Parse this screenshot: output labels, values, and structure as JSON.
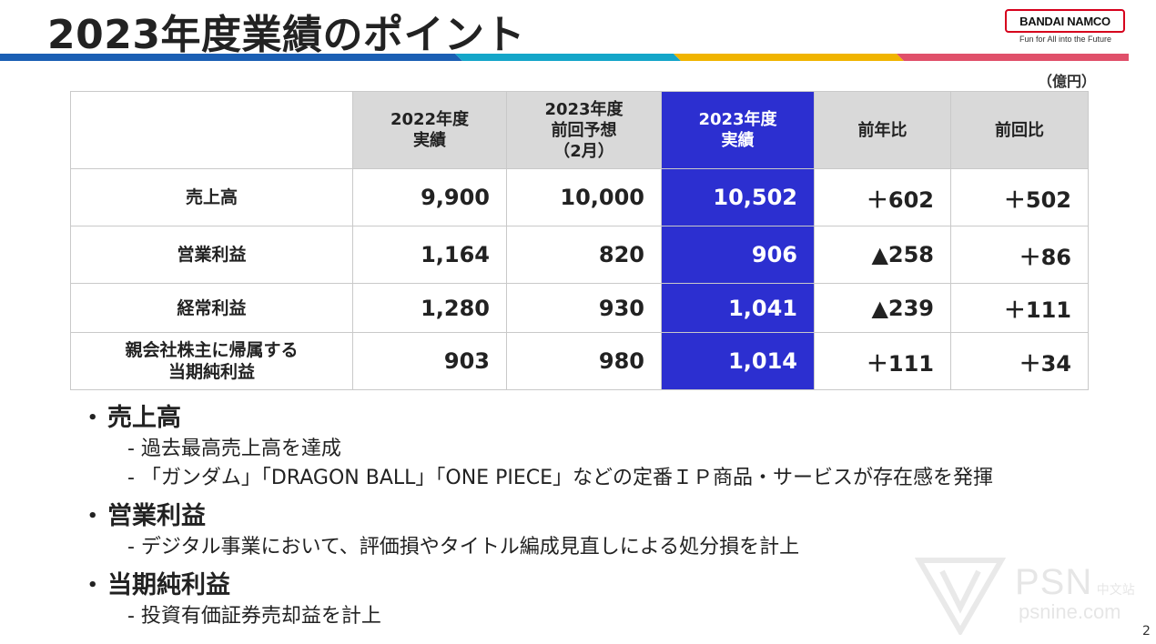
{
  "title": "2023年度業績のポイント",
  "logo": {
    "brand": "BANDAI NAMCO",
    "tagline": "Fun for All into the Future"
  },
  "unit": "（億円）",
  "table": {
    "headers": [
      [
        "2022年度",
        "実績"
      ],
      [
        "2023年度",
        "前回予想",
        "（2月）"
      ],
      [
        "2023年度",
        "実績"
      ],
      [
        "前年比"
      ],
      [
        "前回比"
      ]
    ],
    "rows": [
      {
        "label": [
          "売上高"
        ],
        "values": [
          "9,900",
          "10,000",
          "10,502",
          "＋602",
          "＋502"
        ]
      },
      {
        "label": [
          "営業利益"
        ],
        "values": [
          "1,164",
          "820",
          "906",
          "▲258",
          "＋86"
        ]
      },
      {
        "label": [
          "経常利益"
        ],
        "values": [
          "1,280",
          "930",
          "1,041",
          "▲239",
          "＋111"
        ]
      },
      {
        "label": [
          "親会社株主に帰属する",
          "当期純利益"
        ],
        "values": [
          "903",
          "980",
          "1,014",
          "＋111",
          "＋34"
        ]
      }
    ]
  },
  "notes": [
    {
      "heading": "売上高",
      "items": [
        "- 過去最高売上高を達成",
        "- 「ガンダム」「DRAGON BALL」「ONE PIECE」などの定番ＩＰ商品・サービスが存在感を発揮"
      ]
    },
    {
      "heading": "営業利益",
      "items": [
        "- デジタル事業において、評価損やタイトル編成見直しによる処分損を計上"
      ]
    },
    {
      "heading": "当期純利益",
      "items": [
        "- 投資有価証券売却益を計上"
      ]
    }
  ],
  "bullet_symbol": "•",
  "watermark": {
    "main": "PSN",
    "suffix": "中文站",
    "url": "psnine.com"
  },
  "page_number": "2",
  "colors": {
    "highlight": "#2c2fd0",
    "header_gray": "#d9d9d9",
    "brand_red": "#d6001c",
    "stripe": [
      "#1a5fb4",
      "#14a6c9",
      "#f0b400",
      "#e0506a"
    ]
  }
}
